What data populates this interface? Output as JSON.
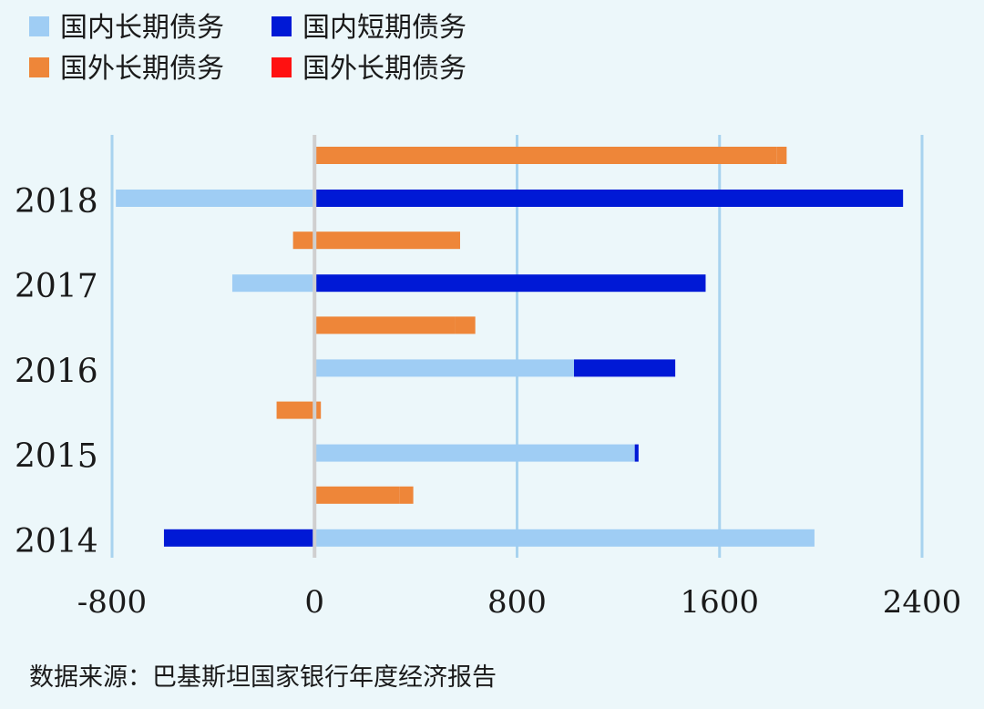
{
  "chart_data": {
    "type": "bar",
    "orientation": "horizontal",
    "stacked": true,
    "categories": [
      "2018",
      "2017",
      "2016",
      "2015",
      "2014"
    ],
    "xlim": [
      -800,
      2400
    ],
    "xticks": [
      -800,
      0,
      800,
      1600,
      2400
    ],
    "grid": true,
    "legend_placement": "top-left",
    "legend": [
      {
        "label": "国内长期债务",
        "color": "#9fcdf4"
      },
      {
        "label": "国内短期债务",
        "color": "#0019d6"
      },
      {
        "label": "国外长期债务",
        "color": "#ee8639"
      },
      {
        "label": "国外长期债务",
        "color": "#ff1111"
      }
    ],
    "groups": [
      {
        "year": "2018",
        "domestic": [
          {
            "series": "国内长期债务",
            "value": -785
          },
          {
            "series": "国内短期债务",
            "value": 2325
          }
        ],
        "foreign": [
          {
            "series": "国外长期债务",
            "value": 1825
          },
          {
            "series": "国外长期债务",
            "value": 40
          }
        ]
      },
      {
        "year": "2017",
        "domestic": [
          {
            "series": "国内长期债务",
            "value": -325
          },
          {
            "series": "国内短期债务",
            "value": 1545
          }
        ],
        "foreign": [
          {
            "series": "国外长期债务",
            "value": 575
          },
          {
            "series": "国外长期债务",
            "value": -85
          }
        ]
      },
      {
        "year": "2016",
        "domestic": [
          {
            "series": "国内长期债务",
            "value": 1025
          },
          {
            "series": "国内短期债务",
            "value": 400
          }
        ],
        "foreign": [
          {
            "series": "国外长期债务",
            "value": 555
          },
          {
            "series": "国外长期债务",
            "value": 80
          }
        ]
      },
      {
        "year": "2015",
        "domestic": [
          {
            "series": "国内长期债务",
            "value": 1265
          },
          {
            "series": "国内短期债务",
            "value": 15
          }
        ],
        "foreign": [
          {
            "series": "国外长期债务",
            "value": -150
          },
          {
            "series": "国外长期债务",
            "value": 25
          }
        ]
      },
      {
        "year": "2014",
        "domestic": [
          {
            "series": "国内长期债务",
            "value": 1975
          },
          {
            "series": "国内短期债务",
            "value": -595
          }
        ],
        "foreign": [
          {
            "series": "国外长期债务",
            "value": 335
          },
          {
            "series": "国外长期债务",
            "value": 55
          }
        ]
      }
    ]
  },
  "source": "数据来源：巴基斯坦国家银行年度经济报告"
}
